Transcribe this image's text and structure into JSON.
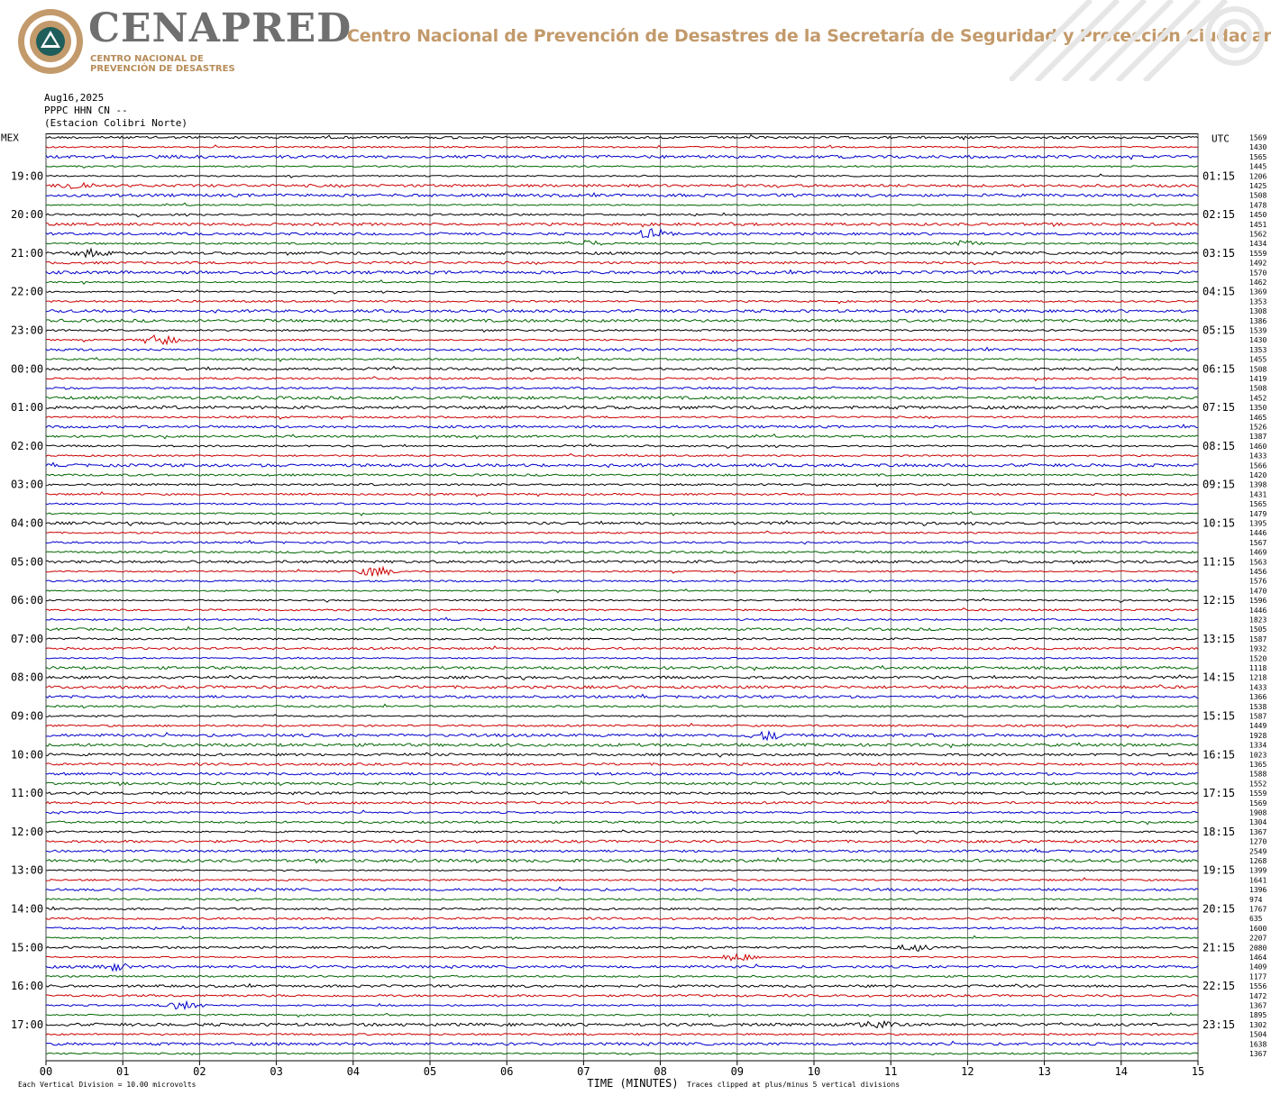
{
  "header": {
    "logo_word": "CENAPRED",
    "logo_subtitle_line1": "CENTRO NACIONAL DE",
    "logo_subtitle_line2": "PREVENCIÓN DE DESASTRES",
    "org_name": "Centro Nacional de Prevención de Desastres de la Secretaría de Seguridad y Protección Ciudadana",
    "colors": {
      "logo_gray": "#6f6f6f",
      "logo_gold": "#b78c5a",
      "title_gold": "#c39a6b"
    }
  },
  "station": {
    "date": "Aug16,2025",
    "channel": "PPPC HHN CN --",
    "name": "(Estacion Colibri Norte)"
  },
  "chart_data": {
    "type": "line",
    "subtype": "helicorder-seismogram",
    "left_axis_label": "MEX",
    "right_axis_label": "UTC",
    "xlabel": "TIME (MINUTES)",
    "x_ticks": [
      "00",
      "01",
      "02",
      "03",
      "04",
      "05",
      "06",
      "07",
      "08",
      "09",
      "10",
      "11",
      "12",
      "13",
      "14",
      "15"
    ],
    "xlim": [
      0,
      15
    ],
    "trace_colors": [
      "#000000",
      "#cc0000",
      "#0000cc",
      "#006600"
    ],
    "grid": true,
    "left_hour_labels": [
      "19:00",
      "20:00",
      "21:00",
      "22:00",
      "23:00",
      "00:00",
      "01:00",
      "02:00",
      "03:00",
      "04:00",
      "05:00",
      "06:00",
      "07:00",
      "08:00",
      "09:00",
      "10:00",
      "11:00",
      "12:00",
      "13:00",
      "14:00",
      "15:00",
      "16:00",
      "17:00"
    ],
    "right_hour_labels": [
      "01:15",
      "02:15",
      "03:15",
      "04:15",
      "05:15",
      "06:15",
      "07:15",
      "08:15",
      "09:15",
      "10:15",
      "11:15",
      "12:15",
      "13:15",
      "14:15",
      "15:15",
      "16:15",
      "17:15",
      "18:15",
      "19:15",
      "20:15",
      "21:15",
      "22:15",
      "23:15"
    ],
    "trace_values": [
      "1569",
      "1430",
      "1565",
      "1445",
      "1206",
      "1425",
      "1508",
      "1478",
      "1450",
      "1451",
      "1562",
      "1434",
      "1559",
      "1492",
      "1570",
      "1462",
      "1369",
      "1353",
      "1308",
      "1386",
      "1539",
      "1430",
      "1353",
      "1455",
      "1508",
      "1419",
      "1508",
      "1452",
      "1350",
      "1465",
      "1526",
      "1387",
      "1460",
      "1433",
      "1566",
      "1420",
      "1398",
      "1431",
      "1565",
      "1479",
      "1395",
      "1446",
      "1567",
      "1469",
      "1563",
      "1456",
      "1576",
      "1470",
      "1596",
      "1446",
      "1823",
      "1505",
      "1587",
      "1932",
      "1520",
      "1118",
      "1218",
      "1433",
      "1366",
      "1538",
      "1587",
      "1449",
      "1928",
      "1334",
      "1023",
      "1365",
      "1588",
      "1552",
      "1559",
      "1569",
      "1908",
      "1304",
      "1367",
      "1270",
      "2549",
      "1268",
      "1399",
      "1641",
      "1396",
      "974",
      "1767",
      "635",
      "1600",
      "2207",
      "2080",
      "1464",
      "1409",
      "1177",
      "1556",
      "1472",
      "1367",
      "1895",
      "1302",
      "1504",
      "1638",
      "1367"
    ],
    "events": [
      {
        "row": 10,
        "minute": 7.9,
        "amplitude": 2.2
      },
      {
        "row": 11,
        "minute": 7.0,
        "amplitude": 1.6
      },
      {
        "row": 11,
        "minute": 11.9,
        "amplitude": 1.5
      },
      {
        "row": 5,
        "minute": 0.4,
        "amplitude": 1.8
      },
      {
        "row": 12,
        "minute": 0.6,
        "amplitude": 1.6
      },
      {
        "row": 21,
        "minute": 1.5,
        "amplitude": 2.5
      },
      {
        "row": 45,
        "minute": 4.3,
        "amplitude": 2.6
      },
      {
        "row": 62,
        "minute": 9.4,
        "amplitude": 1.8
      },
      {
        "row": 84,
        "minute": 11.3,
        "amplitude": 1.6
      },
      {
        "row": 85,
        "minute": 9.0,
        "amplitude": 1.8
      },
      {
        "row": 86,
        "minute": 0.9,
        "amplitude": 1.5
      },
      {
        "row": 90,
        "minute": 1.8,
        "amplitude": 2.0
      },
      {
        "row": 92,
        "minute": 10.8,
        "amplitude": 1.5
      }
    ]
  },
  "footer": {
    "scale_note": "Each Vertical Division =   10.00 microvolts",
    "clip_note": "Traces clipped at plus/minus 5 vertical divisions"
  }
}
